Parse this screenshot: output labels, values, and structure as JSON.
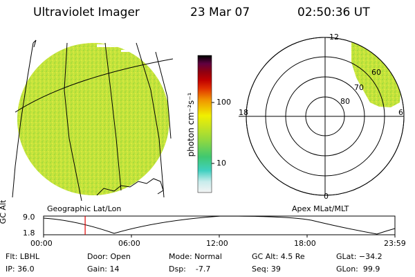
{
  "header": {
    "instrument": "Ultraviolet Imager",
    "date": "23 Mar 07",
    "time": "02:50:36 UT"
  },
  "colorbar": {
    "unit_label": "photon cm⁻²s⁻¹",
    "tick_100": "100",
    "tick_10": "10",
    "colors": [
      "#e8e8e8",
      "#bfe8e8",
      "#40d0c0",
      "#40c080",
      "#80d040",
      "#c0e020",
      "#e8f000",
      "#f0c000",
      "#f09000",
      "#e04000",
      "#c00000",
      "#900000",
      "#800040",
      "#400040",
      "#000000"
    ]
  },
  "panels": {
    "left_label": "Geographic Lat/Lon",
    "right_label": "Apex MLat/MLT"
  },
  "polar": {
    "mlt_top": "12",
    "mlt_left": "18",
    "mlt_right": "6",
    "mlt_bottom": "0",
    "lat_60": "60",
    "lat_70": "70",
    "lat_80": "80"
  },
  "timeline": {
    "ylabel": "GC Alt",
    "y_top": "9.0",
    "y_bottom": "1.8",
    "t0": "00:00",
    "t1": "06:00",
    "t2": "12:00",
    "t3": "18:00",
    "t4": "23:59",
    "current_time_hours": 2.84
  },
  "info": {
    "filt": "Flt: LBHL",
    "ip": "IP: 36.0",
    "door": "Door: Open",
    "gain": "Gain: 14",
    "mode": "Mode: Normal",
    "dsp": "Dsp:    -7.7",
    "gcalt": "GC Alt: 4.5 Re",
    "seq": "Seq: 39",
    "glat": "GLat: −34.2",
    "glon": "GLon:  99.9"
  },
  "colors": {
    "disk_green": "#c8e83c",
    "indicator_red": "#e00000"
  }
}
